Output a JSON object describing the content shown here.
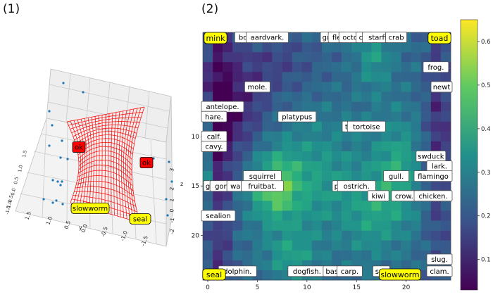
{
  "panels": {
    "left_label": "(1)",
    "right_label": "(2)"
  },
  "chart_data": [
    {
      "type": "surface3d",
      "panel": "(1)",
      "surface_color": "#ff0000",
      "point_color": "#1f77b4",
      "axes": {
        "y_ticks": [
          "1.5",
          "1.0",
          "0.5",
          "0.0",
          "-0.5",
          "-1.0",
          "-1.5"
        ],
        "y_label": "y",
        "x_ticks": [
          "1.5",
          "1.0",
          "0.5",
          "0.0",
          "-0.5",
          "-1.0",
          "-1.5"
        ],
        "z_ticks": [
          "3",
          "2",
          "1",
          "0",
          "-1",
          "-2"
        ],
        "z_label": "z"
      },
      "labels": [
        {
          "text": "ok",
          "style": "red-box"
        },
        {
          "text": "ok",
          "style": "red-box"
        },
        {
          "text": "slowworm",
          "style": "yellow-box"
        },
        {
          "text": "seal",
          "style": "yellow-box"
        }
      ]
    },
    {
      "type": "heatmap",
      "panel": "(2)",
      "colormap": "viridis",
      "grid_size": [
        25,
        25
      ],
      "x_ticks": [
        0,
        5,
        10,
        15,
        20
      ],
      "y_ticks": [
        10,
        15,
        20
      ],
      "colorbar": {
        "ticks": [
          0.1,
          0.2,
          0.3,
          0.4,
          0.5,
          0.6
        ],
        "min": 0.03,
        "max": 0.65
      },
      "corners": [
        {
          "text": "mink",
          "corner": "top-left"
        },
        {
          "text": "toad",
          "corner": "top-right"
        },
        {
          "text": "seal",
          "corner": "bottom-left"
        },
        {
          "text": "slowworm",
          "corner": "bottom-right"
        }
      ],
      "annotations": [
        {
          "text": "boar.",
          "col": 4,
          "row": 0
        },
        {
          "text": "aardvark.",
          "col": 6,
          "row": 0
        },
        {
          "text": "gn",
          "col": 12,
          "row": 0
        },
        {
          "text": "fle",
          "col": 13,
          "row": 0
        },
        {
          "text": "octor",
          "col": 14.5,
          "row": 0
        },
        {
          "text": "cra",
          "col": 15.8,
          "row": 0
        },
        {
          "text": "starfis",
          "col": 17.3,
          "row": 0
        },
        {
          "text": "crab",
          "col": 19,
          "row": 0
        },
        {
          "text": "frog.",
          "col": 23,
          "row": 3
        },
        {
          "text": "mole.",
          "col": 5,
          "row": 5
        },
        {
          "text": "newt",
          "col": 24,
          "row": 5
        },
        {
          "text": "antelope.",
          "col": 0,
          "row": 7
        },
        {
          "text": "hare.",
          "col": 0,
          "row": 8
        },
        {
          "text": "platypus",
          "col": 9,
          "row": 8
        },
        {
          "text": "tu",
          "col": 14.2,
          "row": 9
        },
        {
          "text": "tortoise",
          "col": 16,
          "row": 9
        },
        {
          "text": "calf.",
          "col": 0,
          "row": 10
        },
        {
          "text": "cavy.",
          "col": 0,
          "row": 11
        },
        {
          "text": "swduck",
          "col": 22.5,
          "row": 12
        },
        {
          "text": "lark.",
          "col": 24,
          "row": 13
        },
        {
          "text": "squirrel",
          "col": 5.5,
          "row": 14
        },
        {
          "text": "gull.",
          "col": 19,
          "row": 14
        },
        {
          "text": "flamingo",
          "col": 24,
          "row": 14
        },
        {
          "text": "g",
          "col": 0,
          "row": 15
        },
        {
          "text": "goril",
          "col": 1.5,
          "row": 15
        },
        {
          "text": "walla",
          "col": 3.2,
          "row": 15
        },
        {
          "text": "fruitbat.",
          "col": 5.5,
          "row": 15
        },
        {
          "text": "pe",
          "col": 13.2,
          "row": 15
        },
        {
          "text": "ostrich.",
          "col": 15,
          "row": 15
        },
        {
          "text": "kiwi",
          "col": 17.2,
          "row": 16
        },
        {
          "text": "crow.",
          "col": 19.8,
          "row": 16
        },
        {
          "text": "chicken.",
          "col": 24,
          "row": 16
        },
        {
          "text": "sealion",
          "col": 0,
          "row": 18
        },
        {
          "text": "slug.",
          "col": 24,
          "row": 22.4
        },
        {
          "text": "dolphin.",
          "col": 3,
          "row": 23.6
        },
        {
          "text": "dogfish.",
          "col": 10,
          "row": 23.6
        },
        {
          "text": "bass",
          "col": 12.7,
          "row": 23.6
        },
        {
          "text": "carp.",
          "col": 14.3,
          "row": 23.6
        },
        {
          "text": "sea",
          "col": 17.5,
          "row": 23.6
        },
        {
          "text": "clam.",
          "col": 24,
          "row": 23.6
        }
      ]
    }
  ]
}
